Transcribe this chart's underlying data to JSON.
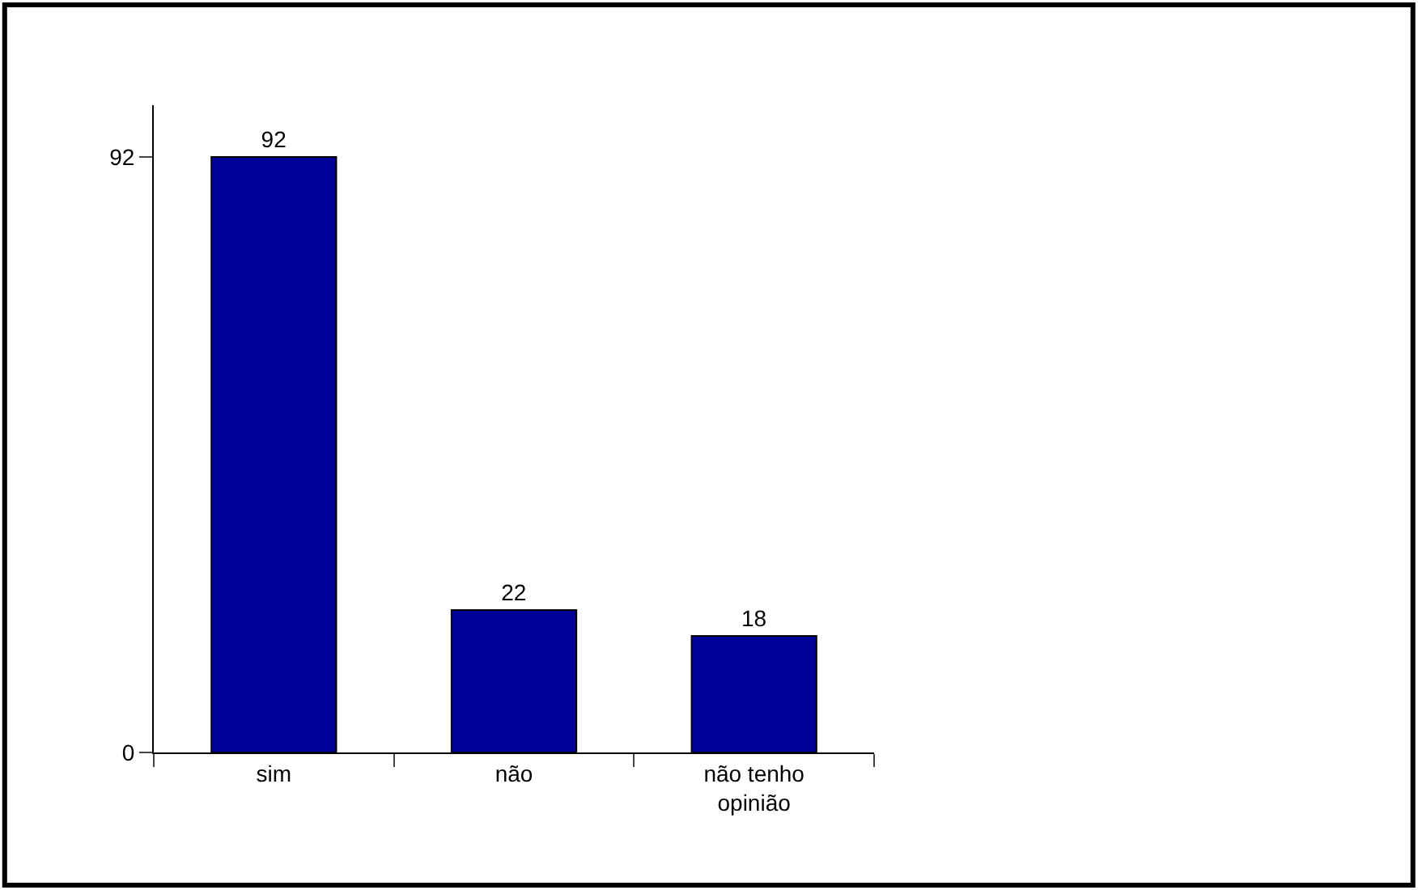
{
  "chart_data": {
    "type": "bar",
    "categories": [
      "sim",
      "não",
      "não tenho opinião"
    ],
    "values": [
      92,
      22,
      18
    ],
    "color": "#000099",
    "ylim": [
      0,
      100
    ],
    "yticks": [
      0,
      92
    ],
    "data_labels": true,
    "legend": false
  }
}
